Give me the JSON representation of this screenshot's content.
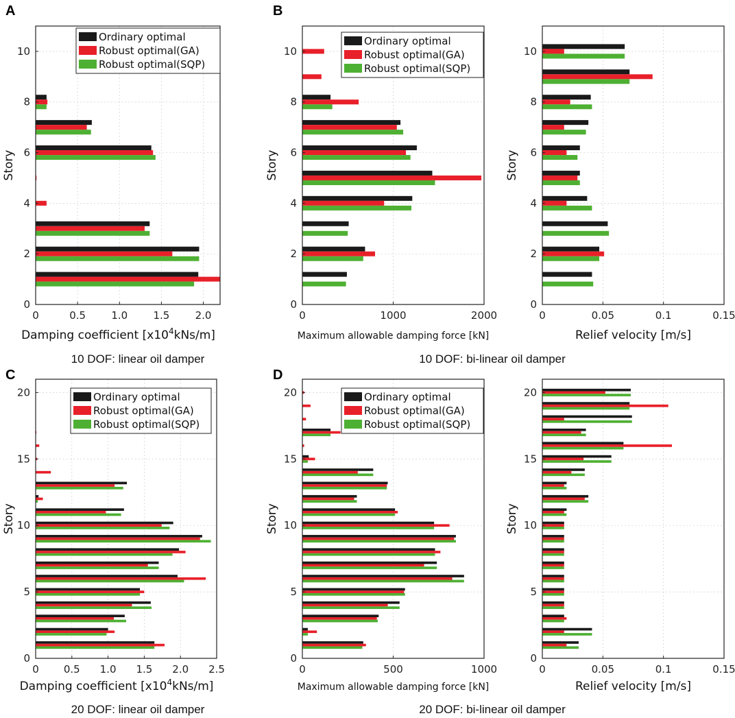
{
  "panel_letters": {
    "A": "A",
    "B": "B",
    "C": "C",
    "D": "D"
  },
  "captions": {
    "top_left": "10 DOF: linear oil damper",
    "top_right": "10 DOF: bi-linear oil damper",
    "bottom_left": "20 DOF: linear oil damper",
    "bottom_right": "20 DOF: bi-linear oil damper"
  },
  "colors": {
    "ordinary": "#1a1a1a",
    "ga": "#e8202a",
    "sqp": "#4eb033"
  },
  "legend": [
    "Ordinary optimal",
    "Robust optimal(GA)",
    "Robust optimal(SQP)"
  ],
  "chart_data": [
    {
      "id": "A",
      "type": "bar",
      "orientation": "horizontal",
      "xlabel_parts": [
        "Damping coefficient [x10",
        "4",
        "kNs/m]"
      ],
      "ylabel": "Story",
      "xlim": [
        0,
        2.2
      ],
      "ylim": [
        0,
        11
      ],
      "xticks": [
        0,
        0.5,
        1.0,
        1.5,
        2.0
      ],
      "xtick_labels": [
        "0",
        "0.5",
        "1.0",
        "1.5",
        "2.0"
      ],
      "yticks": [
        0,
        2,
        4,
        6,
        8,
        10
      ],
      "ytick_labels": [
        "0",
        "2",
        "4",
        "6",
        "8",
        "10"
      ],
      "stories": [
        1,
        2,
        3,
        4,
        5,
        6,
        7,
        8,
        9,
        10
      ],
      "series": [
        {
          "name": "Ordinary optimal",
          "values": [
            1.94,
            1.95,
            1.36,
            0,
            0,
            1.38,
            0.67,
            0.13,
            0,
            0
          ]
        },
        {
          "name": "Robust optimal(GA)",
          "values": [
            2.2,
            1.63,
            1.3,
            0.13,
            0.01,
            1.4,
            0.61,
            0.14,
            0,
            0
          ]
        },
        {
          "name": "Robust optimal(SQP)",
          "values": [
            1.89,
            1.95,
            1.36,
            0,
            0,
            1.43,
            0.66,
            0.13,
            0,
            0
          ]
        }
      ]
    },
    {
      "id": "B1",
      "type": "bar",
      "orientation": "horizontal",
      "xlabel": "Maximum allowable damping force [kN]",
      "ylabel": "Story",
      "xlim": [
        0,
        2000
      ],
      "ylim": [
        0,
        11
      ],
      "xticks": [
        0,
        1000,
        2000
      ],
      "xtick_labels": [
        "0",
        "1000",
        "2000"
      ],
      "yticks": [
        0,
        2,
        4,
        6,
        8,
        10
      ],
      "ytick_labels": [
        "0",
        "2",
        "4",
        "6",
        "8",
        "10"
      ],
      "stories": [
        1,
        2,
        3,
        4,
        5,
        6,
        7,
        8,
        9,
        10
      ],
      "series": [
        {
          "name": "Ordinary optimal",
          "values": [
            490,
            690,
            510,
            1210,
            1430,
            1260,
            1080,
            310,
            0,
            0
          ]
        },
        {
          "name": "Robust optimal(GA)",
          "values": [
            0,
            800,
            0,
            900,
            1970,
            1140,
            1040,
            620,
            210,
            240
          ]
        },
        {
          "name": "Robust optimal(SQP)",
          "values": [
            480,
            670,
            500,
            1200,
            1460,
            1190,
            1110,
            330,
            0,
            0
          ]
        }
      ]
    },
    {
      "id": "B2",
      "type": "bar",
      "orientation": "horizontal",
      "xlabel": "Relief velocity [m/s]",
      "ylabel": "Story",
      "xlim": [
        0,
        0.15
      ],
      "ylim": [
        0,
        11
      ],
      "xticks": [
        0,
        0.05,
        0.1,
        0.15
      ],
      "xtick_labels": [
        "0",
        "0.05",
        "0.1",
        "0.15"
      ],
      "yticks": [
        0,
        2,
        4,
        6,
        8,
        10
      ],
      "ytick_labels": [
        "0",
        "2",
        "4",
        "6",
        "8",
        "10"
      ],
      "stories": [
        1,
        2,
        3,
        4,
        5,
        6,
        7,
        8,
        9,
        10
      ],
      "series": [
        {
          "name": "Ordinary optimal",
          "values": [
            0.041,
            0.047,
            0.054,
            0.037,
            0.031,
            0.031,
            0.038,
            0.04,
            0.072,
            0.068
          ]
        },
        {
          "name": "Robust optimal(GA)",
          "values": [
            0,
            0.051,
            0,
            0.02,
            0.029,
            0.02,
            0.018,
            0.023,
            0.091,
            0.018
          ]
        },
        {
          "name": "Robust optimal(SQP)",
          "values": [
            0.042,
            0.047,
            0.055,
            0.041,
            0.031,
            0.029,
            0.036,
            0.041,
            0.072,
            0.068
          ]
        }
      ]
    },
    {
      "id": "C",
      "type": "bar",
      "orientation": "horizontal",
      "xlabel_parts": [
        "Damping coefficient [x10",
        "4",
        "kNs/m]"
      ],
      "ylabel": "Story",
      "xlim": [
        0,
        2.5
      ],
      "ylim": [
        0,
        21
      ],
      "xticks": [
        0,
        0.5,
        1.0,
        1.5,
        2.0,
        2.5
      ],
      "xtick_labels": [
        "0",
        "0.5",
        "1.0",
        "1.5",
        "2.0",
        "2.5"
      ],
      "yticks": [
        0,
        5,
        10,
        15,
        20
      ],
      "ytick_labels": [
        "0",
        "5",
        "10",
        "15",
        "20"
      ],
      "stories": [
        1,
        2,
        3,
        4,
        5,
        6,
        7,
        8,
        9,
        10,
        11,
        12,
        13,
        14,
        15,
        16,
        17,
        18,
        19,
        20
      ],
      "series": [
        {
          "name": "Ordinary optimal",
          "values": [
            1.64,
            1.0,
            1.23,
            1.59,
            1.44,
            1.96,
            1.7,
            1.98,
            2.3,
            1.9,
            1.22,
            0.04,
            1.26,
            0,
            0,
            0,
            0,
            0,
            0,
            0
          ]
        },
        {
          "name": "Robust optimal(GA)",
          "values": [
            1.78,
            1.09,
            1.08,
            1.33,
            1.5,
            2.35,
            1.55,
            2.07,
            2.27,
            1.74,
            0.97,
            0.1,
            1.09,
            0.21,
            0.02,
            0.05,
            0.01,
            0,
            0,
            0
          ]
        },
        {
          "name": "Robust optimal(SQP)",
          "values": [
            1.64,
            0.98,
            1.25,
            1.6,
            1.44,
            2.05,
            1.7,
            1.89,
            2.42,
            1.85,
            1.18,
            0.03,
            1.21,
            0,
            0,
            0,
            0,
            0,
            0,
            0
          ]
        }
      ]
    },
    {
      "id": "D1",
      "type": "bar",
      "orientation": "horizontal",
      "xlabel": "Maximum allowable damping force [kN]",
      "ylabel": "Story",
      "xlim": [
        0,
        1000
      ],
      "ylim": [
        0,
        21
      ],
      "xticks": [
        0,
        500,
        1000
      ],
      "xtick_labels": [
        "0",
        "500",
        "1000"
      ],
      "yticks": [
        0,
        5,
        10,
        15,
        20
      ],
      "ytick_labels": [
        "0",
        "5",
        "10",
        "15",
        "20"
      ],
      "stories": [
        1,
        2,
        3,
        4,
        5,
        6,
        7,
        8,
        9,
        10,
        11,
        12,
        13,
        14,
        15,
        16,
        17,
        18,
        19,
        20
      ],
      "series": [
        {
          "name": "Ordinary optimal",
          "values": [
            335,
            30,
            420,
            535,
            565,
            890,
            740,
            730,
            845,
            725,
            510,
            300,
            470,
            390,
            35,
            0,
            155,
            0,
            0,
            0
          ]
        },
        {
          "name": "Robust optimal(GA)",
          "values": [
            350,
            80,
            410,
            470,
            560,
            825,
            670,
            760,
            835,
            810,
            525,
            285,
            465,
            305,
            70,
            10,
            210,
            20,
            45,
            10
          ]
        },
        {
          "name": "Robust optimal(SQP)",
          "values": [
            330,
            30,
            415,
            535,
            565,
            890,
            740,
            730,
            845,
            725,
            510,
            300,
            465,
            390,
            30,
            0,
            155,
            0,
            0,
            0
          ]
        }
      ]
    },
    {
      "id": "D2",
      "type": "bar",
      "orientation": "horizontal",
      "xlabel": "Relief velocity [m/s]",
      "ylabel": "Story",
      "xlim": [
        0,
        0.15
      ],
      "ylim": [
        0,
        21
      ],
      "xticks": [
        0,
        0.05,
        0.1,
        0.15
      ],
      "xtick_labels": [
        "0",
        "0.05",
        "0.1",
        "0.15"
      ],
      "yticks": [
        0,
        5,
        10,
        15,
        20
      ],
      "ytick_labels": [
        "0",
        "5",
        "10",
        "15",
        "20"
      ],
      "stories": [
        1,
        2,
        3,
        4,
        5,
        6,
        7,
        8,
        9,
        10,
        11,
        12,
        13,
        14,
        15,
        16,
        17,
        18,
        19,
        20
      ],
      "series": [
        {
          "name": "Ordinary optimal",
          "values": [
            0.03,
            0.041,
            0.018,
            0.018,
            0.018,
            0.018,
            0.018,
            0.018,
            0.018,
            0.018,
            0.02,
            0.038,
            0.02,
            0.035,
            0.057,
            0.067,
            0.036,
            0.074,
            0.072,
            0.073
          ]
        },
        {
          "name": "Robust optimal(GA)",
          "values": [
            0.02,
            0.018,
            0.02,
            0.018,
            0.018,
            0.018,
            0.018,
            0.018,
            0.018,
            0.018,
            0.018,
            0.035,
            0.018,
            0.024,
            0.034,
            0.107,
            0.032,
            0.018,
            0.104,
            0.052
          ]
        },
        {
          "name": "Robust optimal(SQP)",
          "values": [
            0.03,
            0.041,
            0.018,
            0.018,
            0.018,
            0.018,
            0.018,
            0.018,
            0.018,
            0.018,
            0.02,
            0.038,
            0.02,
            0.035,
            0.057,
            0.067,
            0.036,
            0.074,
            0.072,
            0.073
          ]
        }
      ]
    }
  ]
}
